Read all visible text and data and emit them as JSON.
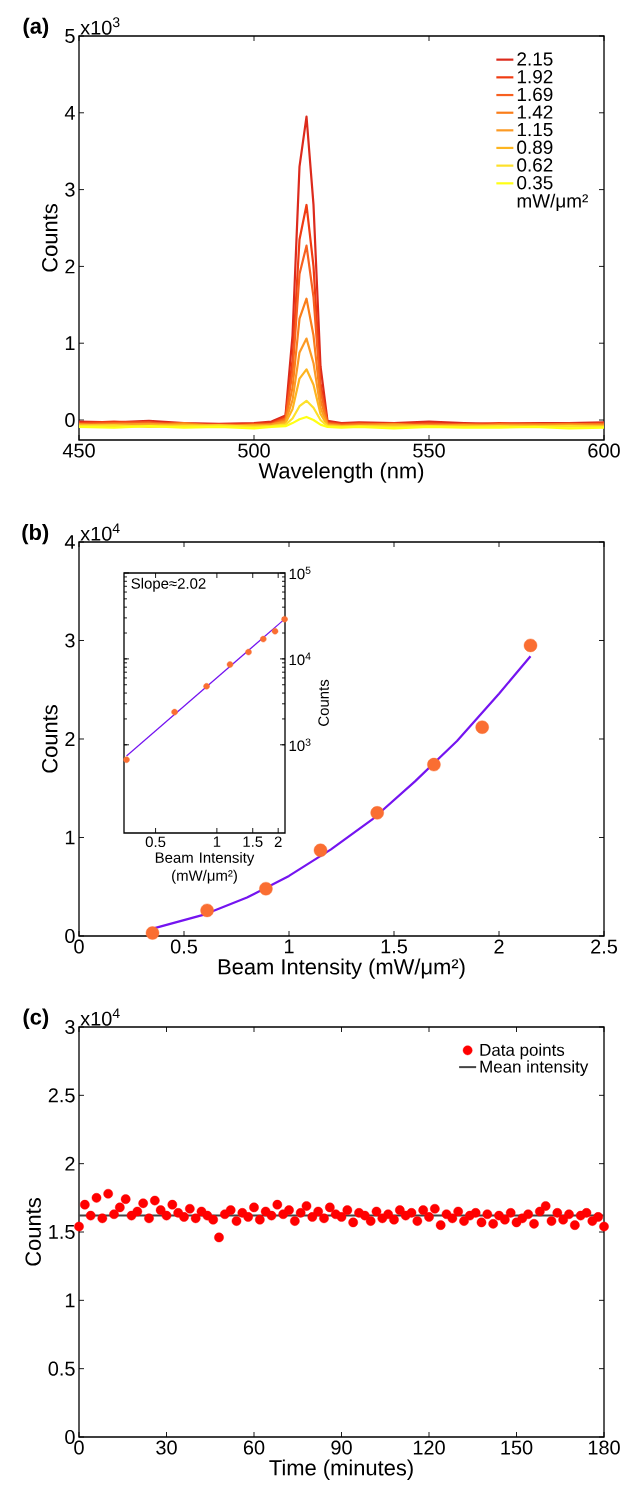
{
  "chart_data": [
    {
      "type": "line",
      "title": "(a)",
      "xlabel": "Wavelength (nm)",
      "ylabel": "Counts",
      "annotations": [
        "x10$^{3}$"
      ],
      "legend": "top right",
      "legend_title": "mW/μm²",
      "xlim": [
        450,
        600
      ],
      "xticks": [
        450,
        500,
        550,
        600
      ],
      "ylim": [
        -0.26,
        5
      ],
      "yticks": [
        0,
        1,
        2,
        3,
        4,
        5
      ],
      "x": [
        450,
        460,
        470,
        480,
        490,
        500,
        505,
        509,
        511,
        513,
        515,
        517,
        519,
        521,
        525,
        530,
        540,
        550,
        560,
        570,
        580,
        590,
        600
      ],
      "series": [
        {
          "name": "2.15",
          "color": "#dc2a1c",
          "values": [
            -0.02,
            -0.03,
            -0.01,
            -0.04,
            -0.05,
            -0.04,
            -0.02,
            0.06,
            1.1,
            3.3,
            3.95,
            2.8,
            0.7,
            -0.01,
            -0.04,
            -0.03,
            -0.04,
            -0.02,
            -0.04,
            -0.05,
            -0.04,
            -0.04,
            -0.03
          ]
        },
        {
          "name": "1.92",
          "color": "#f03c12",
          "values": [
            -0.04,
            -0.02,
            -0.04,
            -0.05,
            -0.06,
            -0.05,
            -0.04,
            0.04,
            0.78,
            2.35,
            2.8,
            2.0,
            0.48,
            -0.03,
            -0.05,
            -0.04,
            -0.05,
            -0.04,
            -0.06,
            -0.04,
            -0.05,
            -0.06,
            -0.04
          ]
        },
        {
          "name": "1.69",
          "color": "#f76020",
          "values": [
            -0.05,
            -0.04,
            -0.03,
            -0.07,
            -0.06,
            -0.07,
            -0.05,
            0.02,
            0.62,
            1.9,
            2.27,
            1.6,
            0.38,
            -0.04,
            -0.06,
            -0.05,
            -0.07,
            -0.05,
            -0.06,
            -0.06,
            -0.05,
            -0.07,
            -0.05
          ]
        },
        {
          "name": "1.42",
          "color": "#fa7d1a",
          "values": [
            -0.06,
            -0.05,
            -0.06,
            -0.04,
            -0.08,
            -0.06,
            -0.06,
            0.0,
            0.42,
            1.32,
            1.58,
            1.1,
            0.26,
            -0.05,
            -0.07,
            -0.06,
            -0.05,
            -0.08,
            -0.06,
            -0.07,
            -0.06,
            -0.05,
            -0.06
          ]
        },
        {
          "name": "1.15",
          "color": "#fc9a24",
          "values": [
            -0.07,
            -0.06,
            -0.05,
            -0.08,
            -0.07,
            -0.08,
            -0.06,
            -0.02,
            0.26,
            0.88,
            1.06,
            0.74,
            0.16,
            -0.06,
            -0.08,
            -0.07,
            -0.06,
            -0.07,
            -0.08,
            -0.06,
            -0.07,
            -0.08,
            -0.07
          ]
        },
        {
          "name": "0.89",
          "color": "#fdb520",
          "values": [
            -0.06,
            -0.08,
            -0.07,
            -0.06,
            -0.09,
            -0.07,
            -0.08,
            -0.04,
            0.14,
            0.54,
            0.66,
            0.46,
            0.08,
            -0.07,
            -0.08,
            -0.09,
            -0.07,
            -0.08,
            -0.07,
            -0.09,
            -0.08,
            -0.07,
            -0.08
          ]
        },
        {
          "name": "0.62",
          "color": "#fde02a",
          "values": [
            -0.08,
            -0.07,
            -0.09,
            -0.08,
            -0.07,
            -0.09,
            -0.08,
            -0.06,
            0.02,
            0.18,
            0.25,
            0.16,
            0.0,
            -0.08,
            -0.09,
            -0.08,
            -0.09,
            -0.08,
            -0.09,
            -0.08,
            -0.09,
            -0.08,
            -0.09
          ]
        },
        {
          "name": "0.35",
          "color": "#ffff14",
          "values": [
            -0.09,
            -0.1,
            -0.08,
            -0.1,
            -0.09,
            -0.11,
            -0.09,
            -0.08,
            -0.04,
            0.01,
            0.04,
            0.0,
            -0.06,
            -0.09,
            -0.1,
            -0.09,
            -0.11,
            -0.09,
            -0.1,
            -0.1,
            -0.09,
            -0.11,
            -0.1
          ]
        }
      ]
    },
    {
      "type": "scatter",
      "title": "(b)",
      "xlabel": "Beam Intensity (mW/μm²)",
      "ylabel": "Counts",
      "annotations": [
        "x10$^{4}$"
      ],
      "xlim": [
        0,
        2.5
      ],
      "xticks": [
        0,
        0.5,
        1,
        1.5,
        2,
        2.5
      ],
      "ylim": [
        0,
        4
      ],
      "yticks": [
        0,
        1,
        2,
        3,
        4
      ],
      "x": [
        0.35,
        0.61,
        0.89,
        1.15,
        1.42,
        1.69,
        1.92,
        2.15
      ],
      "series": [
        {
          "color": "#fa6e32",
          "marker": "circle",
          "values": [
            0.03,
            0.26,
            0.48,
            0.87,
            1.25,
            1.74,
            2.12,
            2.95
          ]
        },
        {
          "type": "line",
          "marker": "none",
          "color": "#7414f0",
          "x": [
            0.36,
            0.6,
            0.8,
            1.0,
            1.2,
            1.4,
            1.6,
            1.8,
            2.0,
            2.15
          ],
          "values": [
            0.08,
            0.22,
            0.39,
            0.61,
            0.88,
            1.19,
            1.57,
            1.98,
            2.46,
            2.84
          ]
        }
      ]
    },
    {
      "type": "scatter",
      "xlabel": "Beam Intensity (mW/μm²)",
      "ylabel": "Counts",
      "annotations": [
        "Slope≈2.02"
      ],
      "log": "xy",
      "xlim": [
        0.35,
        2.16
      ],
      "xticks": [
        0.5,
        1,
        1.5,
        2
      ],
      "ylim": [
        94,
        100000
      ],
      "yticks": [
        {
          "value": 1000,
          "label": "10$^{3}$"
        },
        {
          "value": 10000,
          "label": "10$^{4}$"
        },
        {
          "value": 100000,
          "label": "10$^{5}$"
        }
      ],
      "x": [
        0.36,
        0.62,
        0.89,
        1.16,
        1.43,
        1.69,
        1.93,
        2.15
      ],
      "series": [
        {
          "color": "#fa6e32",
          "marker": "circle",
          "values": [
            670,
            2400,
            4800,
            8600,
            12000,
            17000,
            21000,
            29000
          ]
        },
        {
          "type": "line",
          "marker": "none",
          "color": "#7414f0",
          "x": [
            0.36,
            2.15
          ],
          "values": [
            740,
            29000
          ]
        }
      ]
    },
    {
      "type": "scatter",
      "title": "(c)",
      "xlabel": "Time (minutes)",
      "ylabel": "Counts",
      "annotations": [
        "x10$^{4}$"
      ],
      "legend": "top right",
      "xlim": [
        0,
        180
      ],
      "xticks": [
        0,
        30,
        60,
        90,
        120,
        150,
        180
      ],
      "ylim": [
        0,
        3
      ],
      "yticks": [
        0,
        0.5,
        1,
        1.5,
        2,
        2.5,
        3
      ],
      "x": [
        0,
        2,
        4,
        6,
        8,
        10,
        12,
        14,
        16,
        18,
        20,
        22,
        24,
        26,
        28,
        30,
        32,
        34,
        36,
        38,
        40,
        42,
        44,
        46,
        48,
        50,
        52,
        54,
        56,
        58,
        60,
        62,
        64,
        66,
        68,
        70,
        72,
        74,
        76,
        78,
        80,
        82,
        84,
        86,
        88,
        90,
        92,
        94,
        96,
        98,
        100,
        102,
        104,
        106,
        108,
        110,
        112,
        114,
        116,
        118,
        120,
        122,
        124,
        126,
        128,
        130,
        132,
        134,
        136,
        138,
        140,
        142,
        144,
        146,
        148,
        150,
        152,
        154,
        156,
        158,
        160,
        162,
        164,
        166,
        168,
        170,
        172,
        174,
        176,
        178,
        180
      ],
      "series": [
        {
          "name": "Data points",
          "marker": "circle",
          "color": "#ff0000",
          "values": [
            1.54,
            1.7,
            1.62,
            1.75,
            1.6,
            1.78,
            1.63,
            1.68,
            1.74,
            1.62,
            1.65,
            1.71,
            1.6,
            1.73,
            1.66,
            1.62,
            1.7,
            1.64,
            1.61,
            1.67,
            1.6,
            1.65,
            1.62,
            1.59,
            1.46,
            1.63,
            1.66,
            1.58,
            1.64,
            1.61,
            1.68,
            1.59,
            1.65,
            1.62,
            1.7,
            1.63,
            1.66,
            1.58,
            1.64,
            1.69,
            1.61,
            1.65,
            1.6,
            1.68,
            1.63,
            1.61,
            1.66,
            1.57,
            1.64,
            1.62,
            1.58,
            1.65,
            1.6,
            1.63,
            1.59,
            1.66,
            1.62,
            1.64,
            1.58,
            1.66,
            1.61,
            1.67,
            1.55,
            1.63,
            1.6,
            1.65,
            1.58,
            1.62,
            1.64,
            1.57,
            1.63,
            1.56,
            1.62,
            1.59,
            1.64,
            1.57,
            1.6,
            1.63,
            1.56,
            1.65,
            1.69,
            1.58,
            1.64,
            1.59,
            1.63,
            1.55,
            1.62,
            1.64,
            1.58,
            1.61,
            1.54
          ]
        },
        {
          "name": "Mean intensity",
          "type": "line",
          "marker": "none",
          "color": "#444444",
          "x": [
            0,
            180
          ],
          "values": [
            1.62,
            1.62
          ]
        }
      ]
    }
  ]
}
